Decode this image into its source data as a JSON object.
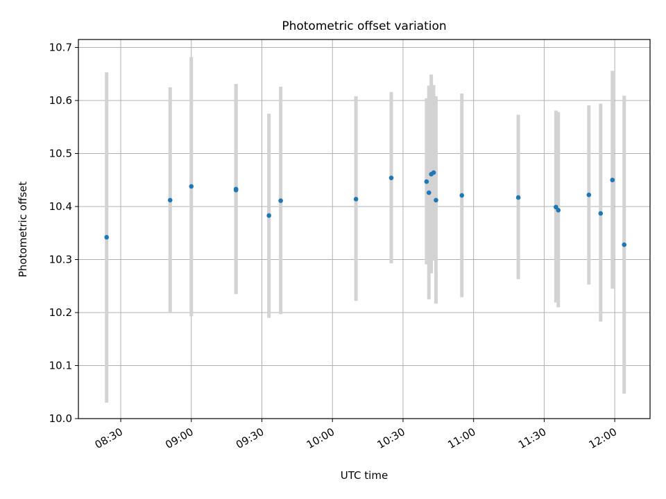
{
  "chart_data": {
    "type": "scatter",
    "title": "Photometric offset variation",
    "xlabel": "UTC time",
    "ylabel": "Photometric offset",
    "x_is_time": true,
    "xlim": [
      "08:12",
      "12:15"
    ],
    "ylim": [
      10.0,
      10.715
    ],
    "x_ticks": [
      "08:30",
      "09:00",
      "09:30",
      "10:00",
      "10:30",
      "11:00",
      "11:30",
      "12:00"
    ],
    "y_ticks": [
      "10.0",
      "10.1",
      "10.2",
      "10.3",
      "10.4",
      "10.5",
      "10.6",
      "10.7"
    ],
    "grid": true,
    "colors": {
      "point": "#1f77b4",
      "errorbar": "#d3d3d3",
      "grid": "#b0b0b0"
    },
    "series": [
      {
        "points": [
          {
            "t": "08:24",
            "y": 10.342,
            "lo": 10.03,
            "hi": 10.653
          },
          {
            "t": "08:51",
            "y": 10.412,
            "lo": 10.2,
            "hi": 10.625
          },
          {
            "t": "09:00",
            "y": 10.438,
            "lo": 10.193,
            "hi": 10.682
          },
          {
            "t": "09:19",
            "y": 10.431,
            "lo": 10.235,
            "hi": 10.631
          },
          {
            "t": "09:19",
            "y": 10.433,
            "lo": 10.235,
            "hi": 10.631
          },
          {
            "t": "09:33",
            "y": 10.383,
            "lo": 10.19,
            "hi": 10.575
          },
          {
            "t": "09:38",
            "y": 10.411,
            "lo": 10.197,
            "hi": 10.626
          },
          {
            "t": "10:10",
            "y": 10.414,
            "lo": 10.222,
            "hi": 10.608
          },
          {
            "t": "10:25",
            "y": 10.454,
            "lo": 10.293,
            "hi": 10.616
          },
          {
            "t": "10:40",
            "y": 10.447,
            "lo": 10.291,
            "hi": 10.604
          },
          {
            "t": "10:41",
            "y": 10.426,
            "lo": 10.225,
            "hi": 10.628
          },
          {
            "t": "10:42",
            "y": 10.461,
            "lo": 10.274,
            "hi": 10.649
          },
          {
            "t": "10:43",
            "y": 10.464,
            "lo": 10.298,
            "hi": 10.629
          },
          {
            "t": "10:44",
            "y": 10.412,
            "lo": 10.217,
            "hi": 10.608
          },
          {
            "t": "10:55",
            "y": 10.421,
            "lo": 10.229,
            "hi": 10.613
          },
          {
            "t": "11:19",
            "y": 10.417,
            "lo": 10.263,
            "hi": 10.573
          },
          {
            "t": "11:35",
            "y": 10.399,
            "lo": 10.219,
            "hi": 10.581
          },
          {
            "t": "11:36",
            "y": 10.393,
            "lo": 10.21,
            "hi": 10.578
          },
          {
            "t": "11:49",
            "y": 10.422,
            "lo": 10.253,
            "hi": 10.591
          },
          {
            "t": "11:54",
            "y": 10.387,
            "lo": 10.183,
            "hi": 10.594
          },
          {
            "t": "11:59",
            "y": 10.45,
            "lo": 10.245,
            "hi": 10.656
          },
          {
            "t": "12:04",
            "y": 10.328,
            "lo": 10.047,
            "hi": 10.609
          }
        ]
      }
    ]
  }
}
